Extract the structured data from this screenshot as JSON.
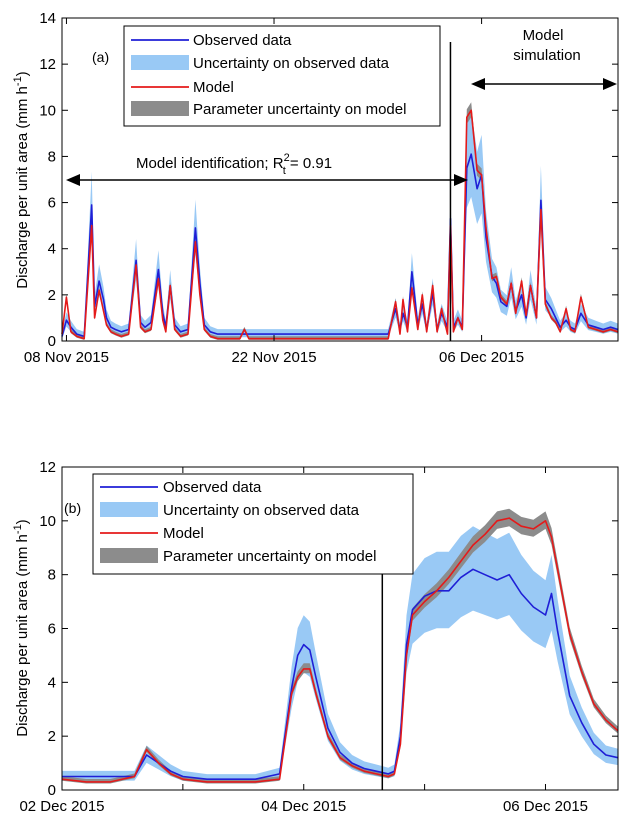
{
  "chart_data": [
    {
      "panel_label": "(a)",
      "type": "line",
      "ylabel": "Discharge per unit area (mm h",
      "ylabel_sup": "-1",
      "ylabel_close": ")",
      "xlim": [
        0,
        37.5
      ],
      "ylim": [
        0,
        14
      ],
      "yticks": [
        "0",
        "2",
        "4",
        "6",
        "8",
        "10",
        "12",
        "14"
      ],
      "xticks": [
        {
          "x": 0.3,
          "label": "08 Nov 2015"
        },
        {
          "x": 14.3,
          "label": "22 Nov 2015"
        },
        {
          "x": 28.3,
          "label": "06 Dec 2015"
        }
      ],
      "divider_x": 26.2,
      "annotations": {
        "identification_pre": "Model identification; R",
        "identification_sup": "2",
        "identification_sub": "t",
        "identification_post": " = 0.91",
        "simulation_line1": "Model",
        "simulation_line2": "simulation"
      },
      "legend": [
        "Observed data",
        "Uncertainty on observed data",
        "Model",
        "Parameter uncertainty on model"
      ],
      "series": [
        {
          "name": "Observed data",
          "color": "#1f1fd6",
          "x": [
            0,
            0.3,
            0.6,
            1,
            1.5,
            2,
            2.2,
            2.5,
            2.8,
            3,
            3.3,
            3.6,
            4,
            4.5,
            5,
            5.3,
            5.6,
            6,
            6.5,
            6.8,
            7,
            7.3,
            7.6,
            8,
            8.5,
            9,
            9.3,
            9.6,
            10,
            10.5,
            11,
            11.5,
            12,
            12.3,
            12.6,
            13,
            13.5,
            14,
            15,
            16,
            17,
            18,
            19,
            20,
            21,
            22,
            22.5,
            22.8,
            23,
            23.3,
            23.6,
            24,
            24.3,
            24.6,
            25,
            25.3,
            25.6,
            26,
            26.2,
            26.4,
            26.7,
            27,
            27.3,
            27.6,
            28,
            28.3,
            28.6,
            29,
            29.3,
            29.6,
            30,
            30.3,
            30.6,
            31,
            31.3,
            31.6,
            32,
            32.3,
            32.6,
            33,
            33.3,
            33.6,
            34,
            34.3,
            34.6,
            35,
            35.5,
            36,
            36.5,
            37,
            37.5
          ],
          "values": [
            0.2,
            0.9,
            0.6,
            0.3,
            0.2,
            5.9,
            1.5,
            2.6,
            1.8,
            1,
            0.6,
            0.5,
            0.4,
            0.5,
            3.5,
            0.8,
            0.6,
            0.8,
            3.1,
            1.2,
            0.6,
            2.4,
            0.7,
            0.4,
            0.5,
            4.9,
            2.5,
            0.7,
            0.4,
            0.3,
            0.3,
            0.3,
            0.3,
            0.3,
            0.3,
            0.3,
            0.3,
            0.3,
            0.3,
            0.3,
            0.3,
            0.3,
            0.3,
            0.3,
            0.3,
            0.3,
            1.4,
            0.5,
            1.2,
            0.6,
            3,
            0.7,
            1.6,
            0.5,
            2.1,
            0.5,
            1.2,
            0.6,
            5.3,
            0.6,
            1,
            0.6,
            7.5,
            8.1,
            6.6,
            7.2,
            4.5,
            2.8,
            2.5,
            1.7,
            1.5,
            2.5,
            1.3,
            2,
            1,
            2.4,
            1,
            6.1,
            1.8,
            1.4,
            1,
            0.6,
            0.9,
            0.6,
            0.5,
            1.2,
            0.7,
            0.6,
            0.5,
            0.6,
            0.5
          ]
        },
        {
          "name": "Model",
          "color": "#e41a1a",
          "x": [
            0,
            0.3,
            0.6,
            1,
            1.5,
            2,
            2.2,
            2.5,
            2.8,
            3,
            3.3,
            3.6,
            4,
            4.5,
            5,
            5.3,
            5.6,
            6,
            6.5,
            6.8,
            7,
            7.3,
            7.6,
            8,
            8.5,
            9,
            9.3,
            9.6,
            10,
            10.5,
            11,
            11.5,
            12,
            12.3,
            12.6,
            13,
            13.5,
            14,
            15,
            16,
            17,
            18,
            19,
            20,
            21,
            22,
            22.5,
            22.8,
            23,
            23.3,
            23.6,
            24,
            24.3,
            24.6,
            25,
            25.3,
            25.6,
            26,
            26.2,
            26.4,
            26.7,
            27,
            27.3,
            27.6,
            28,
            28.3,
            28.6,
            29,
            29.3,
            29.6,
            30,
            30.3,
            30.6,
            31,
            31.3,
            31.6,
            32,
            32.3,
            32.6,
            33,
            33.3,
            33.6,
            34,
            34.3,
            34.6,
            35,
            35.5,
            36,
            36.5,
            37,
            37.5
          ],
          "values": [
            0.3,
            1.9,
            0.4,
            0.2,
            0.1,
            5,
            1,
            2.2,
            1.3,
            0.7,
            0.4,
            0.3,
            0.2,
            0.3,
            3.3,
            0.6,
            0.4,
            0.5,
            2.7,
            0.9,
            0.4,
            2.4,
            0.5,
            0.2,
            0.3,
            4.3,
            2,
            0.5,
            0.2,
            0.1,
            0.1,
            0.1,
            0.1,
            0.5,
            0.1,
            0.1,
            0.1,
            0.1,
            0.1,
            0.1,
            0.1,
            0.1,
            0.1,
            0.1,
            0.1,
            0.1,
            1.7,
            0.3,
            1.8,
            0.4,
            2.3,
            0.5,
            2,
            0.4,
            2.4,
            0.4,
            1.4,
            0.3,
            5,
            0.4,
            1,
            0.5,
            9.7,
            10,
            7.4,
            7.2,
            4.9,
            2.7,
            2.8,
            1.9,
            1.6,
            2.5,
            1.2,
            2.6,
            1.1,
            2.4,
            1,
            5.7,
            1.6,
            1,
            0.8,
            0.4,
            1.4,
            0.5,
            0.4,
            1.9,
            0.6,
            0.5,
            0.4,
            0.5,
            0.4
          ]
        }
      ]
    },
    {
      "panel_label": "(b)",
      "type": "line",
      "ylabel": "Discharge per unit area (mm h",
      "ylabel_sup": "-1",
      "ylabel_close": ")",
      "xlim": [
        0,
        4.6
      ],
      "ylim": [
        0,
        12
      ],
      "yticks": [
        "0",
        "2",
        "4",
        "6",
        "8",
        "10",
        "12"
      ],
      "xticks": [
        {
          "x": 0,
          "label": "02 Dec 2015"
        },
        {
          "x": 2,
          "label": "04 Dec 2015"
        },
        {
          "x": 4,
          "label": "06 Dec 2015"
        }
      ],
      "minor_xticks": [
        1,
        3
      ],
      "divider_x": 2.65,
      "legend": [
        "Observed data",
        "Uncertainty on observed data",
        "Model",
        "Parameter uncertainty on model"
      ],
      "series": [
        {
          "name": "Observed data",
          "color": "#1f1fd6",
          "x": [
            0,
            0.2,
            0.4,
            0.6,
            0.7,
            0.8,
            0.9,
            1,
            1.2,
            1.4,
            1.6,
            1.8,
            1.9,
            1.95,
            2,
            2.05,
            2.1,
            2.2,
            2.3,
            2.4,
            2.5,
            2.6,
            2.7,
            2.75,
            2.8,
            2.85,
            2.9,
            3,
            3.1,
            3.2,
            3.3,
            3.4,
            3.5,
            3.6,
            3.7,
            3.8,
            3.9,
            4,
            4.05,
            4.1,
            4.2,
            4.3,
            4.4,
            4.5,
            4.6
          ],
          "values": [
            0.5,
            0.5,
            0.5,
            0.5,
            1.3,
            1,
            0.7,
            0.5,
            0.4,
            0.4,
            0.4,
            0.6,
            3.8,
            5,
            5.4,
            5.2,
            4.2,
            2.3,
            1.4,
            1,
            0.8,
            0.7,
            0.6,
            0.7,
            2,
            5.4,
            6.7,
            7.2,
            7.4,
            7.4,
            7.9,
            8.2,
            8,
            7.8,
            8,
            7.3,
            6.8,
            6.5,
            7.3,
            5.9,
            3.5,
            2.5,
            1.7,
            1.3,
            1.2
          ]
        },
        {
          "name": "Model",
          "color": "#e41a1a",
          "x": [
            0,
            0.2,
            0.4,
            0.6,
            0.7,
            0.8,
            0.9,
            1,
            1.2,
            1.4,
            1.6,
            1.8,
            1.9,
            1.95,
            2,
            2.05,
            2.1,
            2.2,
            2.3,
            2.4,
            2.5,
            2.6,
            2.7,
            2.75,
            2.8,
            2.85,
            2.9,
            3,
            3.1,
            3.2,
            3.3,
            3.4,
            3.5,
            3.6,
            3.7,
            3.8,
            3.9,
            4,
            4.05,
            4.1,
            4.2,
            4.3,
            4.4,
            4.5,
            4.6
          ],
          "values": [
            0.4,
            0.3,
            0.3,
            0.5,
            1.5,
            1,
            0.6,
            0.4,
            0.3,
            0.3,
            0.3,
            0.4,
            3.6,
            4.2,
            4.5,
            4.5,
            3.6,
            2,
            1.2,
            0.9,
            0.7,
            0.6,
            0.5,
            0.6,
            1.7,
            5,
            6.5,
            7,
            7.4,
            7.9,
            8.5,
            9.1,
            9.5,
            10,
            10.1,
            9.8,
            9.7,
            10,
            9.4,
            8.2,
            5.8,
            4.4,
            3.2,
            2.6,
            2.2
          ]
        }
      ]
    }
  ]
}
